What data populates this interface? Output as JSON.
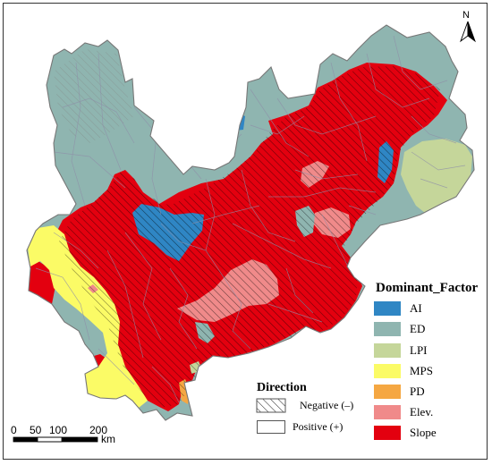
{
  "north_label": "N",
  "legend": {
    "title": "Dominant_Factor",
    "items": [
      {
        "label": "AI",
        "color": "#2f86c4"
      },
      {
        "label": "ED",
        "color": "#8fb5b0"
      },
      {
        "label": "LPI",
        "color": "#c5d69a"
      },
      {
        "label": "MPS",
        "color": "#fbfb66"
      },
      {
        "label": "PD",
        "color": "#f5a742"
      },
      {
        "label": "Elev.",
        "color": "#f08a8a"
      },
      {
        "label": "Slope",
        "color": "#e3000f"
      }
    ]
  },
  "direction": {
    "title": "Direction",
    "negative_label": "Negative (–)",
    "positive_label": "Positive (+)"
  },
  "scale_bar": {
    "ticks": [
      "0",
      "50",
      "100",
      "200"
    ],
    "unit": "km"
  }
}
